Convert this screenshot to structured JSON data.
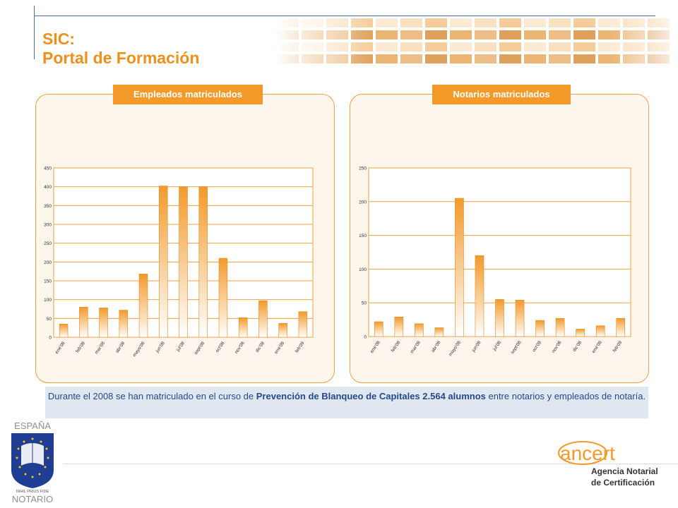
{
  "header": {
    "title_line1": "SIC:",
    "title_line2": "Portal de Formación"
  },
  "colors": {
    "accent": "#f39a2a",
    "bar_top": "#f39a2a",
    "bar_bottom": "#ffffff",
    "grid": "#f0a040",
    "note_bg": "#e1e7f1",
    "note_text": "#244a8a"
  },
  "chart_data": [
    {
      "type": "bar",
      "title": "Empleados matriculados",
      "categories": [
        "ene'08",
        "feb'08",
        "mar'08",
        "abr'08",
        "mayo'08",
        "jun'08",
        "jul'08",
        "sept'08",
        "oct'08",
        "nov'08",
        "dic'08",
        "ene'08",
        "feb'09"
      ],
      "values": [
        35,
        80,
        78,
        72,
        168,
        402,
        400,
        400,
        210,
        52,
        97,
        37,
        68
      ],
      "ylim": [
        0,
        450
      ],
      "yticks": [
        0,
        50,
        100,
        150,
        200,
        250,
        300,
        350,
        400,
        450
      ],
      "grid": true
    },
    {
      "type": "bar",
      "title": "Notarios matriculados",
      "categories": [
        "ene'08",
        "feb'08",
        "mar'08",
        "abr'08",
        "mayo'08",
        "jun'08",
        "jul'08",
        "sept'08",
        "oct'08",
        "nov'08",
        "dic'08",
        "ene'08",
        "feb'09"
      ],
      "values": [
        22,
        29,
        19,
        13,
        205,
        120,
        55,
        54,
        24,
        27,
        11,
        16,
        27
      ],
      "ylim": [
        0,
        250
      ],
      "yticks": [
        0,
        50,
        100,
        150,
        200,
        250
      ],
      "grid": true
    }
  ],
  "note": {
    "part1": "Durante el 2008 se han matriculado en el curso de ",
    "bold1": "Prevención de Blanqueo de Capitales 2.564 alumnos",
    "part2": " entre notarios y empleados de notaría."
  },
  "logos": {
    "left_top": "ESPAÑA",
    "left_motto": "NIHIL PRIUS FIDE",
    "left_bottom": "NOTARIO",
    "right_brand": "ancert",
    "right_line1": "Agencia Notarial",
    "right_line2": "de Certificación"
  }
}
